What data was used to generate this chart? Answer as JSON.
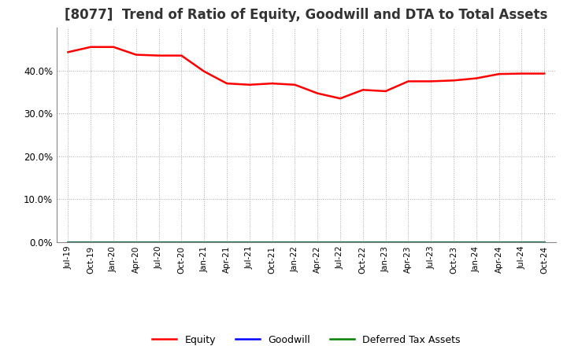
{
  "title": "[8077]  Trend of Ratio of Equity, Goodwill and DTA to Total Assets",
  "title_fontsize": 12,
  "title_color": "#333333",
  "background_color": "#ffffff",
  "plot_bg_color": "#ffffff",
  "grid_color": "#aaaaaa",
  "equity_color": "#ff0000",
  "goodwill_color": "#0000ff",
  "dta_color": "#008000",
  "ylim": [
    0.0,
    0.5
  ],
  "yticks": [
    0.0,
    0.1,
    0.2,
    0.3,
    0.4
  ],
  "equity": [
    0.443,
    0.455,
    0.455,
    0.437,
    0.435,
    0.435,
    0.398,
    0.37,
    0.367,
    0.37,
    0.367,
    0.347,
    0.335,
    0.355,
    0.352,
    0.375,
    0.375,
    0.377,
    0.382,
    0.392,
    0.393,
    0.393
  ],
  "goodwill": [
    0,
    0,
    0,
    0,
    0,
    0,
    0,
    0,
    0,
    0,
    0,
    0,
    0,
    0,
    0,
    0,
    0,
    0,
    0,
    0,
    0,
    0
  ],
  "dta": [
    0,
    0,
    0,
    0,
    0,
    0,
    0,
    0,
    0,
    0,
    0,
    0,
    0,
    0,
    0,
    0,
    0,
    0,
    0,
    0,
    0,
    0
  ],
  "xtick_labels": [
    "Jul-19",
    "Oct-19",
    "Jan-20",
    "Apr-20",
    "Jul-20",
    "Oct-20",
    "Jan-21",
    "Apr-21",
    "Jul-21",
    "Oct-21",
    "Jan-22",
    "Apr-22",
    "Jul-22",
    "Oct-22",
    "Jan-23",
    "Apr-23",
    "Jul-23",
    "Oct-23",
    "Jan-24",
    "Apr-24",
    "Jul-24",
    "Oct-24"
  ],
  "legend_labels": [
    "Equity",
    "Goodwill",
    "Deferred Tax Assets"
  ],
  "line_width": 1.8
}
